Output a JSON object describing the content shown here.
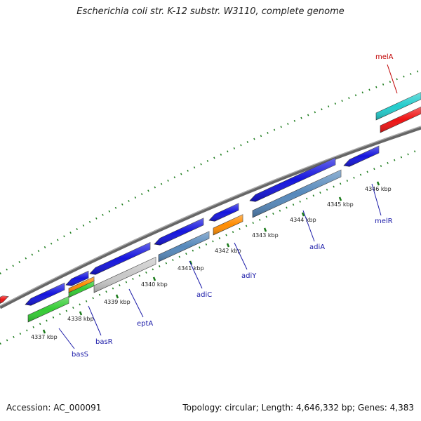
{
  "title": "Escherichia coli str. K-12 substr. W3110, complete genome",
  "footer": {
    "accession": "Accession: AC_000091",
    "summary": "Topology: circular; Length: 4,646,332 bp; Genes: 4,383"
  },
  "colors": {
    "backbone": "#888888",
    "tick_green": "#1a7a1a",
    "label_blue": "#1a1aa8",
    "label_red": "#c00000",
    "gene_blue": "#1414dd",
    "gene_green": "#33cc33",
    "gene_orange": "#ff8c00",
    "gene_steel": "#5588bb",
    "gene_gray": "#c8c8c8",
    "gene_cyan": "#22cccc",
    "gene_red": "#ee1111"
  },
  "scale": {
    "unit": "kbp",
    "ticks": [
      {
        "value": 4337,
        "label": "4337 kbp"
      },
      {
        "value": 4338,
        "label": "4338 kbp"
      },
      {
        "value": 4339,
        "label": "4339 kbp"
      },
      {
        "value": 4340,
        "label": "4340 kbp"
      },
      {
        "value": 4341,
        "label": "4341 kbp"
      },
      {
        "value": 4342,
        "label": "4342 kbp"
      },
      {
        "value": 4343,
        "label": "4343 kbp"
      },
      {
        "value": 4344,
        "label": "4344 kbp"
      },
      {
        "value": 4345,
        "label": "4345 kbp"
      },
      {
        "value": 4346,
        "label": "4346 kbp"
      }
    ]
  },
  "gene_labels": [
    {
      "name": "basS",
      "color": "label_blue"
    },
    {
      "name": "basR",
      "color": "label_blue"
    },
    {
      "name": "eptA",
      "color": "label_blue"
    },
    {
      "name": "adiC",
      "color": "label_blue"
    },
    {
      "name": "adiY",
      "color": "label_blue"
    },
    {
      "name": "adiA",
      "color": "label_blue"
    },
    {
      "name": "melR",
      "color": "label_blue"
    },
    {
      "name": "melA",
      "color": "label_red"
    }
  ]
}
